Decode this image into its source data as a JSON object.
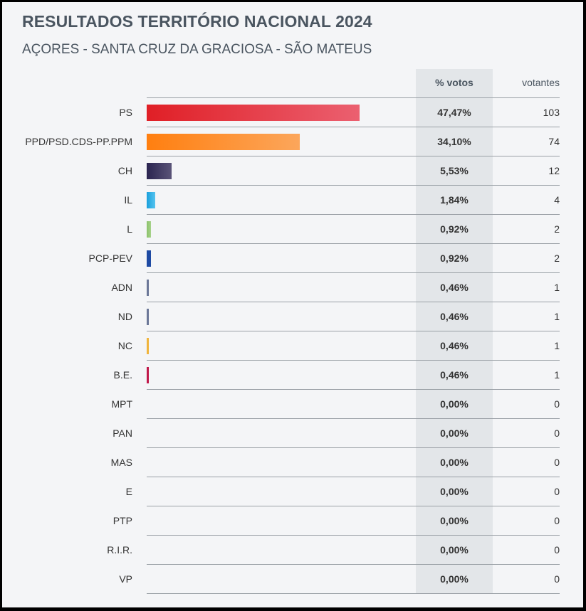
{
  "header": {
    "title": "RESULTADOS TERRITÓRIO NACIONAL 2024",
    "subtitle": "AÇORES - SANTA CRUZ DA GRACIOSA - SÃO MATEUS"
  },
  "columns": {
    "pct_label": "% votos",
    "votes_label": "votantes"
  },
  "chart_data": {
    "type": "bar",
    "orientation": "horizontal",
    "title": "RESULTADOS TERRITÓRIO NACIONAL 2024",
    "subtitle": "AÇORES - SANTA CRUZ DA GRACIOSA - SÃO MATEUS",
    "xlim": [
      0,
      75
    ],
    "categories": [
      "PS",
      "PPD/PSD.CDS-PP.PPM",
      "CH",
      "IL",
      "L",
      "PCP-PEV",
      "ADN",
      "ND",
      "NC",
      "B.E.",
      "MPT",
      "PAN",
      "MAS",
      "E",
      "PTP",
      "R.I.R.",
      "VP"
    ],
    "values": [
      47.47,
      34.1,
      5.53,
      1.84,
      0.92,
      0.92,
      0.46,
      0.46,
      0.46,
      0.46,
      0,
      0,
      0,
      0,
      0,
      0,
      0
    ],
    "pct_labels": [
      "47,47%",
      "34,10%",
      "5,53%",
      "1,84%",
      "0,92%",
      "0,92%",
      "0,46%",
      "0,46%",
      "0,46%",
      "0,46%",
      "0,00%",
      "0,00%",
      "0,00%",
      "0,00%",
      "0,00%",
      "0,00%",
      "0,00%"
    ],
    "votes": [
      103,
      74,
      12,
      4,
      2,
      2,
      1,
      1,
      1,
      1,
      0,
      0,
      0,
      0,
      0,
      0,
      0
    ],
    "colors": [
      [
        "#e01f26",
        "#eb6070"
      ],
      [
        "#ff7f10",
        "#fca65b"
      ],
      [
        "#2a2450",
        "#5a5478"
      ],
      [
        "#1aa0dc",
        "#55c3ef"
      ],
      [
        "#8cc36b",
        "#a6d18a"
      ],
      [
        "#1e4aa3",
        "#1e4aa3"
      ],
      [
        "#6b7797",
        "#6b7797"
      ],
      [
        "#6b7797",
        "#6b7797"
      ],
      [
        "#f0b43c",
        "#f0b43c"
      ],
      [
        "#c0184a",
        "#c0184a"
      ],
      [
        "#999999",
        "#999999"
      ],
      [
        "#999999",
        "#999999"
      ],
      [
        "#999999",
        "#999999"
      ],
      [
        "#999999",
        "#999999"
      ],
      [
        "#999999",
        "#999999"
      ],
      [
        "#999999",
        "#999999"
      ],
      [
        "#999999",
        "#999999"
      ]
    ]
  }
}
